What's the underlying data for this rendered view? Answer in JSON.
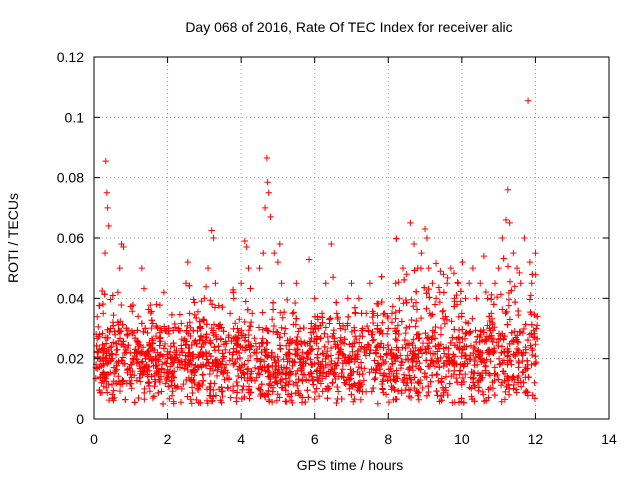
{
  "chart_data": {
    "type": "scatter",
    "title": "Day 068 of 2016, Rate Of TEC Index for receiver alic",
    "xlabel": "GPS time / hours",
    "ylabel": "ROTI / TECUs",
    "xlim": [
      0,
      14
    ],
    "ylim": [
      0,
      0.12
    ],
    "xticks": [
      0,
      2,
      4,
      6,
      8,
      10,
      12,
      14
    ],
    "xtick_labels": [
      "0",
      "2",
      "4",
      "6",
      "8",
      "10",
      "12",
      "14"
    ],
    "yticks": [
      0,
      0.02,
      0.04,
      0.06,
      0.08,
      0.1,
      0.12
    ],
    "ytick_labels": [
      "0",
      "0.02",
      "0.04",
      "0.06",
      "0.08",
      "0.1",
      "0.12"
    ],
    "grid": true,
    "marker": "+",
    "marker_color": "#ff0000",
    "series": [
      {
        "name": "ROTI",
        "points": [
          [
            0.05,
            0.017
          ],
          [
            0.1,
            0.022
          ],
          [
            0.15,
            0.028
          ],
          [
            0.2,
            0.012
          ],
          [
            0.25,
            0.035
          ],
          [
            0.3,
            0.055
          ],
          [
            0.32,
            0.0855
          ],
          [
            0.35,
            0.075
          ],
          [
            0.37,
            0.07
          ],
          [
            0.4,
            0.064
          ],
          [
            0.45,
            0.03
          ],
          [
            0.5,
            0.02
          ],
          [
            0.55,
            0.015
          ],
          [
            0.6,
            0.025
          ],
          [
            0.65,
            0.042
          ],
          [
            0.7,
            0.05
          ],
          [
            0.75,
            0.058
          ],
          [
            0.8,
            0.057
          ],
          [
            0.9,
            0.028
          ],
          [
            1.0,
            0.018
          ],
          [
            1.1,
            0.022
          ],
          [
            1.2,
            0.034
          ],
          [
            1.3,
            0.05
          ],
          [
            1.4,
            0.02
          ],
          [
            1.5,
            0.016
          ],
          [
            1.6,
            0.025
          ],
          [
            1.7,
            0.038
          ],
          [
            1.8,
            0.03
          ],
          [
            1.9,
            0.042
          ],
          [
            2.0,
            0.02
          ],
          [
            2.1,
            0.015
          ],
          [
            2.2,
            0.022
          ],
          [
            2.3,
            0.03
          ],
          [
            2.4,
            0.018
          ],
          [
            2.5,
            0.045
          ],
          [
            2.55,
            0.052
          ],
          [
            2.6,
            0.035
          ],
          [
            2.7,
            0.02
          ],
          [
            2.8,
            0.025
          ],
          [
            2.9,
            0.03
          ],
          [
            3.0,
            0.04
          ],
          [
            3.1,
            0.05
          ],
          [
            3.2,
            0.0625
          ],
          [
            3.25,
            0.06
          ],
          [
            3.3,
            0.045
          ],
          [
            3.4,
            0.03
          ],
          [
            3.5,
            0.02
          ],
          [
            3.6,
            0.025
          ],
          [
            3.7,
            0.035
          ],
          [
            3.8,
            0.04
          ],
          [
            3.9,
            0.03
          ],
          [
            4.0,
            0.045
          ],
          [
            4.1,
            0.059
          ],
          [
            4.15,
            0.057
          ],
          [
            4.2,
            0.05
          ],
          [
            4.3,
            0.035
          ],
          [
            4.4,
            0.025
          ],
          [
            4.5,
            0.05
          ],
          [
            4.6,
            0.055
          ],
          [
            4.65,
            0.07
          ],
          [
            4.7,
            0.0865
          ],
          [
            4.72,
            0.0785
          ],
          [
            4.75,
            0.075
          ],
          [
            4.8,
            0.067
          ],
          [
            4.9,
            0.055
          ],
          [
            5.0,
            0.052
          ],
          [
            5.05,
            0.058
          ],
          [
            5.1,
            0.045
          ],
          [
            5.2,
            0.03
          ],
          [
            5.3,
            0.025
          ],
          [
            5.4,
            0.035
          ],
          [
            5.5,
            0.045
          ],
          [
            5.6,
            0.03
          ],
          [
            5.7,
            0.02
          ],
          [
            5.8,
            0.025
          ],
          [
            5.9,
            0.03
          ],
          [
            6.0,
            0.04
          ],
          [
            6.1,
            0.03
          ],
          [
            6.2,
            0.035
          ],
          [
            6.3,
            0.045
          ],
          [
            6.45,
            0.058
          ],
          [
            6.5,
            0.047
          ],
          [
            6.6,
            0.035
          ],
          [
            6.7,
            0.03
          ],
          [
            6.8,
            0.025
          ],
          [
            6.9,
            0.04
          ],
          [
            7.0,
            0.045
          ],
          [
            7.1,
            0.035
          ],
          [
            7.2,
            0.04
          ],
          [
            7.3,
            0.03
          ],
          [
            7.4,
            0.035
          ],
          [
            7.5,
            0.045
          ],
          [
            7.6,
            0.035
          ],
          [
            7.7,
            0.03
          ],
          [
            7.8,
            0.025
          ],
          [
            7.9,
            0.035
          ],
          [
            8.0,
            0.03
          ],
          [
            8.1,
            0.035
          ],
          [
            8.2,
            0.045
          ],
          [
            8.3,
            0.04
          ],
          [
            8.4,
            0.05
          ],
          [
            8.5,
            0.048
          ],
          [
            8.6,
            0.065
          ],
          [
            8.7,
            0.058
          ],
          [
            8.8,
            0.05
          ],
          [
            8.9,
            0.055
          ],
          [
            9.0,
            0.063
          ],
          [
            9.05,
            0.06
          ],
          [
            9.1,
            0.05
          ],
          [
            9.2,
            0.045
          ],
          [
            9.3,
            0.04
          ],
          [
            9.4,
            0.042
          ],
          [
            9.5,
            0.048
          ],
          [
            9.6,
            0.045
          ],
          [
            9.7,
            0.05
          ],
          [
            9.8,
            0.04
          ],
          [
            9.9,
            0.045
          ],
          [
            10.0,
            0.035
          ],
          [
            10.1,
            0.04
          ],
          [
            10.2,
            0.045
          ],
          [
            10.3,
            0.05
          ],
          [
            10.4,
            0.04
          ],
          [
            10.5,
            0.045
          ],
          [
            10.6,
            0.054
          ],
          [
            10.7,
            0.04
          ],
          [
            10.8,
            0.035
          ],
          [
            10.9,
            0.045
          ],
          [
            11.0,
            0.05
          ],
          [
            11.1,
            0.06
          ],
          [
            11.2,
            0.066
          ],
          [
            11.25,
            0.076
          ],
          [
            11.3,
            0.065
          ],
          [
            11.4,
            0.055
          ],
          [
            11.5,
            0.05
          ],
          [
            11.6,
            0.045
          ],
          [
            11.7,
            0.06
          ],
          [
            11.8,
            0.1055
          ],
          [
            11.85,
            0.052
          ],
          [
            11.9,
            0.045
          ],
          [
            12.0,
            0.055
          ],
          [
            12.02,
            0.03
          ]
        ]
      }
    ],
    "band": {
      "x_range": [
        0.05,
        12.05
      ],
      "baseline_min": 0.005,
      "baseline_center": 0.018,
      "baseline_spread": 0.014
    }
  }
}
